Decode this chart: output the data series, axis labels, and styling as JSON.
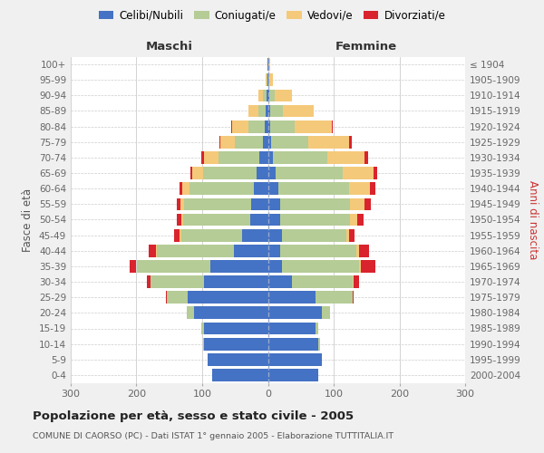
{
  "age_groups": [
    "100+",
    "95-99",
    "90-94",
    "85-89",
    "80-84",
    "75-79",
    "70-74",
    "65-69",
    "60-64",
    "55-59",
    "50-54",
    "45-49",
    "40-44",
    "35-39",
    "30-34",
    "25-29",
    "20-24",
    "15-19",
    "10-14",
    "5-9",
    "0-4"
  ],
  "birth_years": [
    "≤ 1904",
    "1905-1909",
    "1910-1914",
    "1915-1919",
    "1920-1924",
    "1925-1929",
    "1930-1934",
    "1935-1939",
    "1940-1944",
    "1945-1949",
    "1950-1954",
    "1955-1959",
    "1960-1964",
    "1965-1969",
    "1970-1974",
    "1975-1979",
    "1980-1984",
    "1985-1989",
    "1990-1994",
    "1995-1999",
    "2000-2004"
  ],
  "colors": {
    "celibi": "#4472c4",
    "coniugati": "#b5cc96",
    "vedovi": "#f5c97a",
    "divorziati": "#d9232d"
  },
  "maschi": {
    "celibi": [
      1,
      1,
      2,
      4,
      5,
      8,
      13,
      17,
      22,
      25,
      27,
      40,
      52,
      87,
      97,
      122,
      112,
      97,
      97,
      92,
      85
    ],
    "coniugati": [
      0,
      1,
      5,
      10,
      24,
      42,
      62,
      82,
      97,
      102,
      102,
      92,
      117,
      112,
      82,
      32,
      12,
      5,
      2,
      0,
      0
    ],
    "vedovi": [
      0,
      2,
      8,
      16,
      26,
      22,
      22,
      16,
      11,
      6,
      3,
      2,
      1,
      1,
      0,
      0,
      0,
      0,
      0,
      0,
      0
    ],
    "divorziati": [
      0,
      0,
      0,
      0,
      1,
      2,
      5,
      3,
      5,
      6,
      7,
      9,
      11,
      11,
      5,
      1,
      0,
      0,
      0,
      0,
      0
    ]
  },
  "femmine": {
    "celibi": [
      1,
      1,
      2,
      3,
      3,
      5,
      8,
      12,
      16,
      18,
      18,
      22,
      18,
      22,
      37,
      72,
      82,
      72,
      77,
      82,
      77
    ],
    "coniugati": [
      0,
      1,
      8,
      20,
      37,
      57,
      82,
      102,
      107,
      107,
      107,
      97,
      117,
      117,
      92,
      57,
      12,
      5,
      2,
      0,
      0
    ],
    "vedovi": [
      2,
      5,
      27,
      47,
      57,
      62,
      57,
      47,
      32,
      22,
      11,
      5,
      3,
      2,
      1,
      0,
      0,
      0,
      0,
      0,
      0
    ],
    "divorziati": [
      0,
      0,
      0,
      0,
      2,
      3,
      5,
      5,
      8,
      10,
      10,
      8,
      16,
      22,
      8,
      2,
      0,
      0,
      0,
      0,
      0
    ]
  },
  "title": "Popolazione per età, sesso e stato civile - 2005",
  "subtitle": "COMUNE DI CAORSO (PC) - Dati ISTAT 1° gennaio 2005 - Elaborazione TUTTITALIA.IT",
  "xlabel_maschi": "Maschi",
  "xlabel_femmine": "Femmine",
  "ylabel_left": "Fasce di età",
  "ylabel_right": "Anni di nascita",
  "xlim": 300,
  "legend_labels": [
    "Celibi/Nubili",
    "Coniugati/e",
    "Vedovi/e",
    "Divorziati/e"
  ],
  "bg_color": "#f0f0f0",
  "plot_bg_color": "#ffffff",
  "grid_color": "#cccccc"
}
